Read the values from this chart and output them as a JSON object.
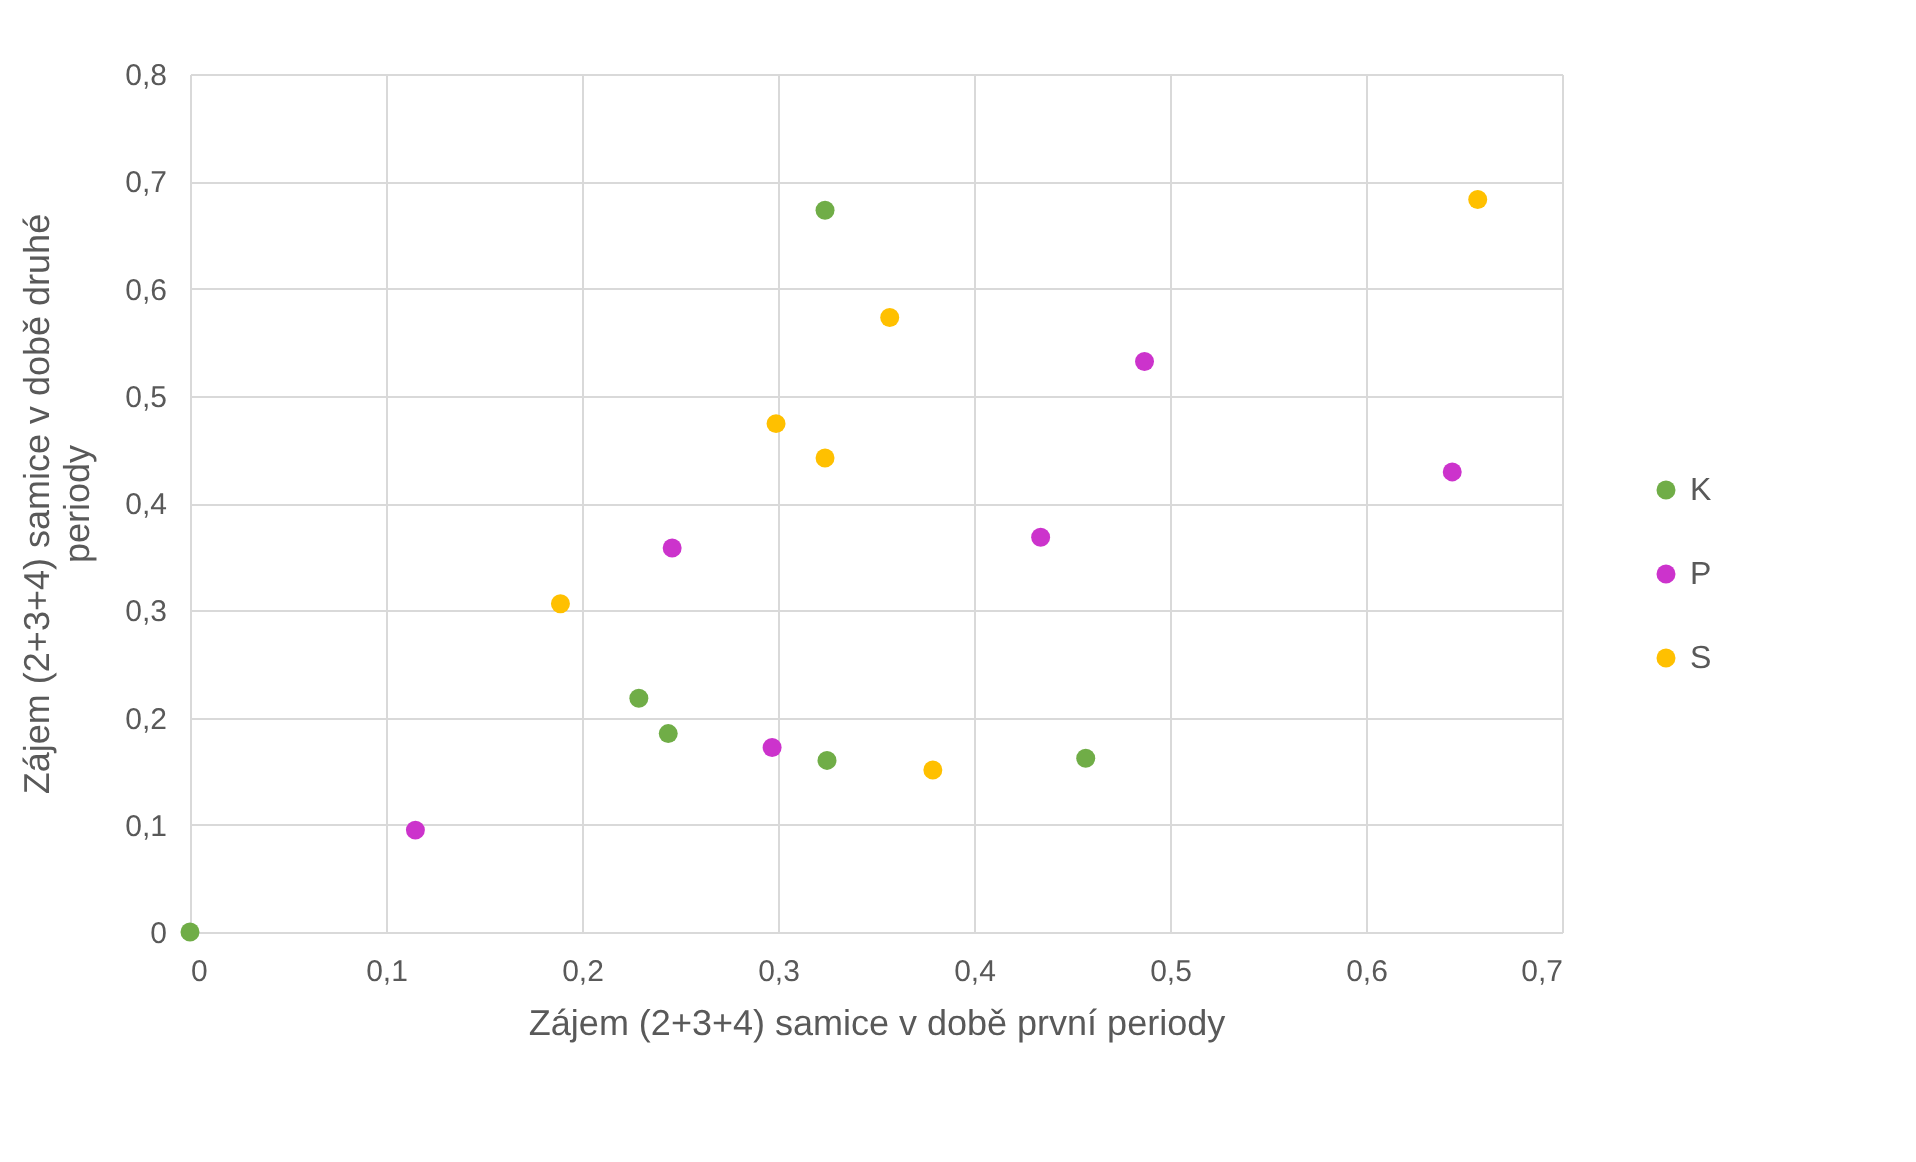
{
  "chart_data": {
    "type": "scatter",
    "xlabel": "Zájem (2+3+4) samice v době první periody",
    "ylabel": "Zájem (2+3+4) samice v době druhé periody",
    "series": [
      {
        "name": "K",
        "color": "#70ad47",
        "x": [
          0,
          0.324,
          0.229,
          0.244,
          0.325,
          0.457
        ],
        "values": [
          0,
          0.673,
          0.218,
          0.185,
          0.16,
          0.162
        ]
      },
      {
        "name": "P",
        "color": "#cc33cc",
        "x": [
          0.115,
          0.246,
          0.297,
          0.434,
          0.487,
          0.644
        ],
        "values": [
          0.095,
          0.358,
          0.172,
          0.368,
          0.532,
          0.429
        ]
      },
      {
        "name": "S",
        "color": "#ffc000",
        "x": [
          0.189,
          0.299,
          0.324,
          0.357,
          0.379,
          0.657
        ],
        "values": [
          0.306,
          0.474,
          0.442,
          0.573,
          0.151,
          0.683
        ]
      }
    ],
    "xlim": [
      0,
      0.7
    ],
    "ylim": [
      0,
      0.8
    ],
    "xticks": [
      0,
      {
        "value": 0.1,
        "label": "0,1"
      },
      {
        "value": 0.2,
        "label": "0,2"
      },
      {
        "value": 0.3,
        "label": "0,3"
      },
      {
        "value": 0.4,
        "label": "0,4"
      },
      {
        "value": 0.5,
        "label": "0,5"
      },
      {
        "value": 0.6,
        "label": "0,6"
      },
      {
        "value": 0.7,
        "label": "0,7"
      }
    ],
    "yticks": [
      0,
      {
        "value": 0.1,
        "label": "0,1"
      },
      {
        "value": 0.2,
        "label": "0,2"
      },
      {
        "value": 0.3,
        "label": "0,3"
      },
      {
        "value": 0.4,
        "label": "0,4"
      },
      {
        "value": 0.5,
        "label": "0,5"
      },
      {
        "value": 0.6,
        "label": "0,6"
      },
      {
        "value": 0.7,
        "label": "0,7"
      },
      {
        "value": 0.8,
        "label": "0,8"
      }
    ],
    "grid": true,
    "legend": "right",
    "marker": "circle"
  }
}
